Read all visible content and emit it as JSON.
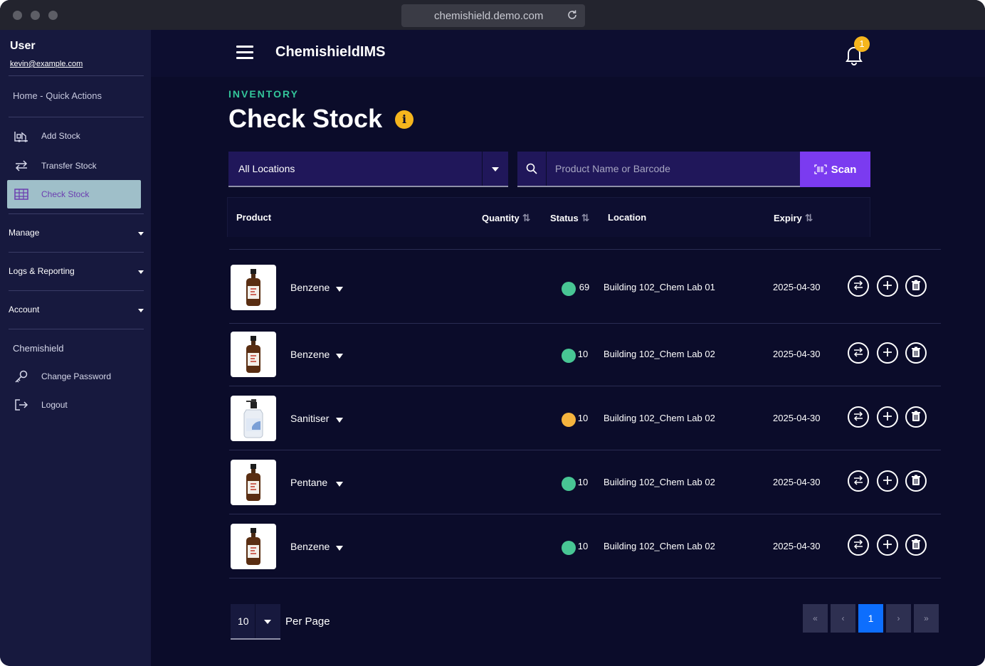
{
  "browser": {
    "url": "chemishield.demo.com"
  },
  "user": {
    "name": "User",
    "email": "kevin@example.com"
  },
  "sidebar": {
    "home_link": "Home - Quick Actions",
    "items": [
      {
        "label": "Add Stock",
        "icon": "forklift-icon"
      },
      {
        "label": "Transfer Stock",
        "icon": "transfer-arrows-icon"
      },
      {
        "label": "Check Stock",
        "icon": "grid-table-icon",
        "active": true
      }
    ],
    "sections": [
      "Manage",
      "Logs & Reporting",
      "Account"
    ],
    "org": "Chemishield",
    "account_links": [
      {
        "label": "Change Password",
        "icon": "key-icon"
      },
      {
        "label": "Logout",
        "icon": "logout-icon"
      }
    ]
  },
  "header": {
    "brand": "ChemishieldIMS",
    "notifications": "1"
  },
  "page": {
    "kicker": "INVENTORY",
    "title": "Check Stock",
    "info_icon": "i"
  },
  "filters": {
    "location": "All Locations",
    "search_placeholder": "Product Name or Barcode",
    "scan_label": "Scan"
  },
  "table": {
    "columns": {
      "product": "Product",
      "quantity": "Quantity",
      "status": "Status",
      "location": "Location",
      "expiry": "Expiry"
    },
    "rows": [
      {
        "product": "Benzene",
        "quantity": "69",
        "status": "#48c694",
        "location": "Building 102_Chem Lab 01",
        "expiry": "2025-04-30",
        "image": "amber-bottle"
      },
      {
        "product": "Benzene",
        "quantity": "10",
        "status": "#48c694",
        "location": "Building 102_Chem Lab 02",
        "expiry": "2025-04-30",
        "image": "amber-bottle"
      },
      {
        "product": "Sanitiser",
        "quantity": "10",
        "status": "#f5b43e",
        "location": "Building 102_Chem Lab 02",
        "expiry": "2025-04-30",
        "image": "pump-bottle"
      },
      {
        "product": "Pentane",
        "quantity": "10",
        "status": "#48c694",
        "location": "Building 102_Chem Lab 02",
        "expiry": "2025-04-30",
        "image": "amber-bottle"
      },
      {
        "product": "Benzene",
        "quantity": "10",
        "status": "#48c694",
        "location": "Building 102_Chem Lab 02",
        "expiry": "2025-04-30",
        "image": "amber-bottle"
      }
    ]
  },
  "pagination": {
    "per_page_value": "10",
    "per_page_label": "Per Page",
    "first": "«",
    "prev": "‹",
    "current": "1",
    "next": "›",
    "last": "»"
  },
  "colors": {
    "accent": "#7b3bf0",
    "kicker": "#33c59a",
    "warning": "#f5b51d",
    "active_page": "#0d6efd"
  }
}
